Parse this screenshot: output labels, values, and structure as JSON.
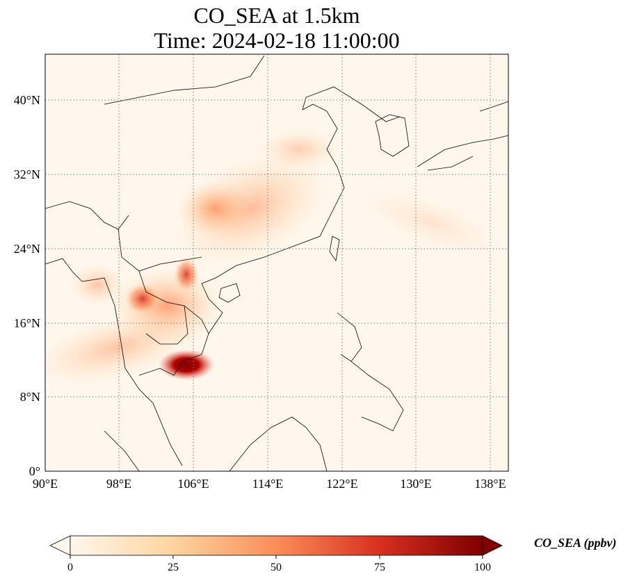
{
  "title_line1": "CO_SEA at 1.5km",
  "title_line2": "Time: 2024-02-18 11:00:00",
  "lat_labels": [
    "0°",
    "8°N",
    "16°N",
    "24°N",
    "32°N",
    "40°N"
  ],
  "lon_labels": [
    "90°E",
    "98°E",
    "106°E",
    "114°E",
    "122°E",
    "130°E",
    "138°E"
  ],
  "colorbar": {
    "label": "CO_SEA (ppbv)",
    "ticks": [
      "0",
      "25",
      "50",
      "75",
      "100"
    ],
    "range": [
      0,
      100
    ],
    "colormap": "OrRd",
    "extend": "both"
  },
  "map_extent": {
    "lon": [
      90,
      140
    ],
    "lat": [
      0,
      45
    ]
  },
  "gridlines": "dotted",
  "colors": {
    "low": "#fff7ec",
    "mid": "#fdae6b",
    "high": "#d7301f",
    "max": "#7f0000"
  }
}
